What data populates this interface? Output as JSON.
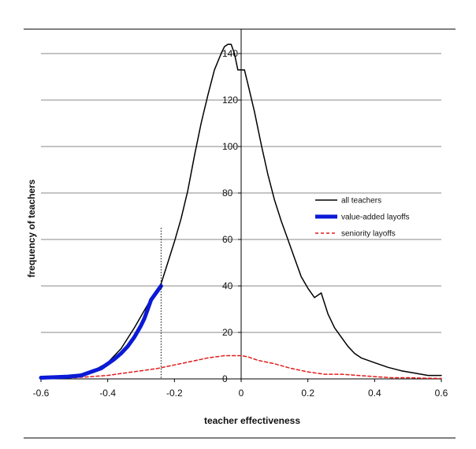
{
  "chart_data": {
    "type": "line",
    "title": "",
    "xlabel": "teacher effectiveness",
    "ylabel": "frequency of teachers",
    "xlim": [
      -0.6,
      0.6
    ],
    "ylim": [
      0,
      145
    ],
    "x_ticks": [
      -0.6,
      -0.4,
      -0.2,
      0,
      0.2,
      0.4,
      0.6
    ],
    "x_tick_labels": [
      "-0.6",
      "-0.4",
      "-0.2",
      "0",
      "0.2",
      "0.4",
      "0.6"
    ],
    "y_ticks": [
      0,
      20,
      40,
      60,
      80,
      100,
      120,
      140
    ],
    "y_tick_labels": [
      "0",
      "20",
      "40",
      "60",
      "80",
      "100",
      "120",
      "140"
    ],
    "grid": "horizontal",
    "legend_position": "right",
    "cutoff_line": {
      "x": -0.24,
      "y_top": 65
    },
    "series": [
      {
        "name": "all teachers",
        "color": "#000000",
        "style": "solid",
        "x": [
          -0.6,
          -0.55,
          -0.5,
          -0.45,
          -0.4,
          -0.36,
          -0.32,
          -0.28,
          -0.26,
          -0.24,
          -0.22,
          -0.2,
          -0.18,
          -0.16,
          -0.14,
          -0.12,
          -0.1,
          -0.08,
          -0.06,
          -0.05,
          -0.04,
          -0.03,
          -0.02,
          -0.01,
          0,
          0.01,
          0.02,
          0.04,
          0.06,
          0.08,
          0.1,
          0.12,
          0.14,
          0.16,
          0.18,
          0.2,
          0.22,
          0.24,
          0.26,
          0.28,
          0.3,
          0.32,
          0.34,
          0.36,
          0.38,
          0.4,
          0.44,
          0.48,
          0.52,
          0.56,
          0.6
        ],
        "y": [
          0.5,
          1,
          1.5,
          3,
          7,
          13,
          22,
          32,
          37,
          41,
          50,
          59,
          69,
          81,
          96,
          110,
          122,
          133,
          140,
          143,
          144,
          144,
          140,
          133,
          133,
          133,
          127,
          115,
          101,
          88,
          77,
          68,
          60,
          52,
          44,
          39,
          35,
          37,
          28,
          22,
          18,
          14,
          11,
          9,
          8,
          7,
          5,
          3.5,
          2.5,
          1.5,
          1.5
        ]
      },
      {
        "name": "value-added layoffs",
        "color": "#0b1ad6",
        "style": "thick",
        "x": [
          -0.6,
          -0.56,
          -0.52,
          -0.48,
          -0.45,
          -0.42,
          -0.4,
          -0.38,
          -0.36,
          -0.34,
          -0.32,
          -0.3,
          -0.29,
          -0.28,
          -0.27,
          -0.26,
          -0.25,
          -0.24
        ],
        "y": [
          0.5,
          0.7,
          1,
          1.5,
          3,
          4.5,
          6.5,
          8.5,
          11,
          14,
          18,
          23,
          26,
          30,
          34,
          36,
          38,
          40
        ]
      },
      {
        "name": "seniority layoffs",
        "color": "#e21b1b",
        "style": "dashed",
        "x": [
          -0.6,
          -0.5,
          -0.45,
          -0.4,
          -0.35,
          -0.3,
          -0.25,
          -0.2,
          -0.15,
          -0.1,
          -0.05,
          0,
          0.02,
          0.05,
          0.1,
          0.15,
          0.2,
          0.25,
          0.3,
          0.35,
          0.4,
          0.45,
          0.5,
          0.55,
          0.6
        ],
        "y": [
          0.3,
          0.5,
          1,
          1.5,
          2.5,
          3.5,
          4.5,
          6,
          7.5,
          9,
          10,
          10,
          9.5,
          8,
          6.5,
          4.5,
          3,
          2,
          2,
          1.5,
          1,
          0.5,
          0.5,
          0.3,
          0.2
        ]
      }
    ]
  }
}
